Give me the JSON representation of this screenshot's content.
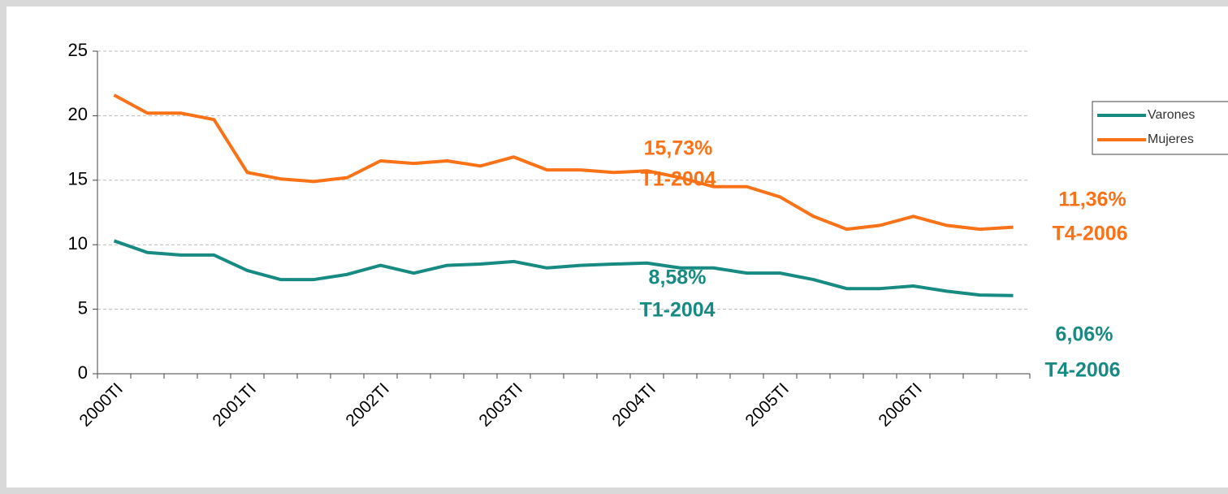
{
  "chart_data": {
    "type": "line",
    "categories": [
      "2000TI",
      null,
      null,
      null,
      "2001TI",
      null,
      null,
      null,
      "2002TI",
      null,
      null,
      null,
      "2003TI",
      null,
      null,
      null,
      "2004TI",
      null,
      null,
      null,
      "2005TI",
      null,
      null,
      null,
      "2006TI",
      null,
      null,
      null
    ],
    "series": [
      {
        "name": "Varones",
        "color": "#178a82",
        "values": [
          10.3,
          9.4,
          9.2,
          9.2,
          8.0,
          7.3,
          7.3,
          7.7,
          8.4,
          7.8,
          8.4,
          8.5,
          8.7,
          8.2,
          8.4,
          8.5,
          8.58,
          8.2,
          8.2,
          7.8,
          7.8,
          7.3,
          6.6,
          6.6,
          6.8,
          6.4,
          6.1,
          6.06
        ]
      },
      {
        "name": "Mujeres",
        "color": "#fa7218",
        "values": [
          21.6,
          20.2,
          20.2,
          19.7,
          15.6,
          15.1,
          14.9,
          15.2,
          16.5,
          16.3,
          16.5,
          16.1,
          16.8,
          15.8,
          15.8,
          15.6,
          15.73,
          15.2,
          14.5,
          14.5,
          13.7,
          12.2,
          11.2,
          11.5,
          12.2,
          11.5,
          11.2,
          11.36
        ]
      }
    ],
    "ylim": [
      0,
      25
    ],
    "yticks": [
      0,
      5,
      10,
      15,
      20,
      25
    ],
    "grid": true,
    "legend": "right",
    "annotations": [
      {
        "text": "15,73%",
        "color": "#fa7218"
      },
      {
        "text": "T1-2004",
        "color": "#fa7218"
      },
      {
        "text": "11,36%",
        "color": "#fa7218"
      },
      {
        "text": "T4-2006",
        "color": "#fa7218"
      },
      {
        "text": "8,58%",
        "color": "#178a82"
      },
      {
        "text": "T1-2004",
        "color": "#178a82"
      },
      {
        "text": "6,06%",
        "color": "#178a82"
      },
      {
        "text": "T4-2006",
        "color": "#178a82"
      }
    ]
  }
}
